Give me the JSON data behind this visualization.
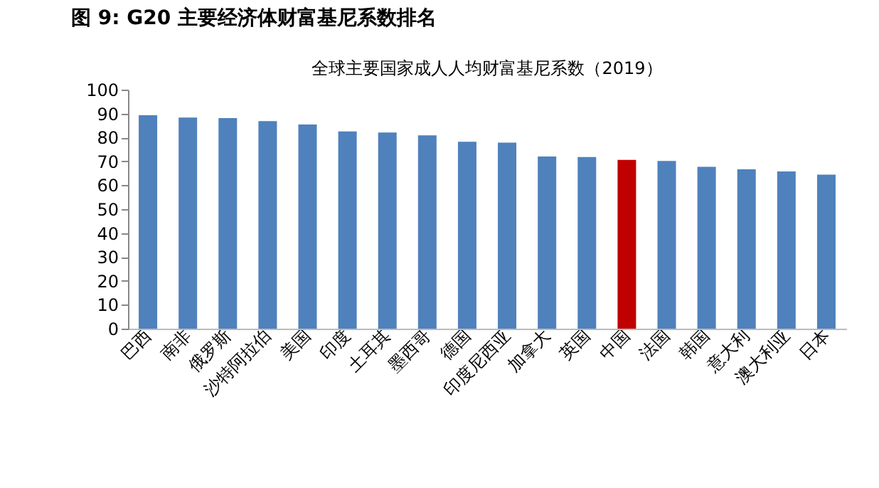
{
  "chart_data": {
    "type": "bar",
    "title": "图 9:  G20 主要经济体财富基尼系数排名",
    "subtitle": "全球主要国家成人人均财富基尼系数（2019）",
    "categories": [
      "巴西",
      "南非",
      "俄罗斯",
      "沙特阿拉伯",
      "美国",
      "印度",
      "土耳其",
      "墨西哥",
      "德国",
      "印度尼西亚",
      "加拿大",
      "英国",
      "中国",
      "法国",
      "韩国",
      "意大利",
      "澳大利亚",
      "日本"
    ],
    "values": [
      89.3,
      88.3,
      88.1,
      86.8,
      85.4,
      82.5,
      82.1,
      80.9,
      78.2,
      77.8,
      72.0,
      71.8,
      70.6,
      70.2,
      67.7,
      66.7,
      65.8,
      64.4
    ],
    "colors": [
      "#4f81bd",
      "#4f81bd",
      "#4f81bd",
      "#4f81bd",
      "#4f81bd",
      "#4f81bd",
      "#4f81bd",
      "#4f81bd",
      "#4f81bd",
      "#4f81bd",
      "#4f81bd",
      "#4f81bd",
      "#c00000",
      "#4f81bd",
      "#4f81bd",
      "#4f81bd",
      "#4f81bd",
      "#4f81bd"
    ],
    "ylim": [
      0,
      100
    ],
    "yticks": [
      0,
      10,
      20,
      30,
      40,
      50,
      60,
      70,
      80,
      90,
      100
    ],
    "grid": false
  }
}
